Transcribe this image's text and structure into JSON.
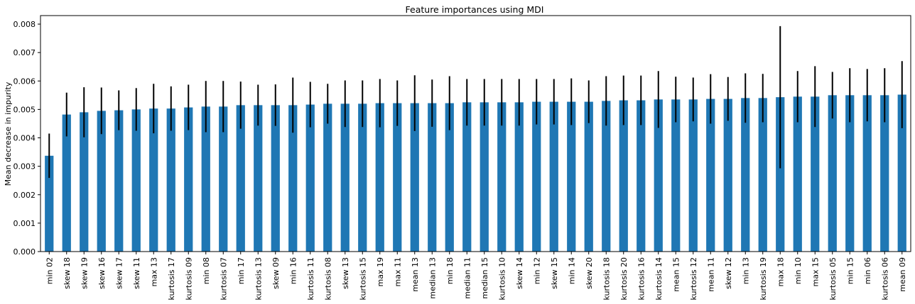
{
  "chart_data": {
    "type": "bar",
    "title": "Feature importances using MDI",
    "xlabel": "",
    "ylabel": "Mean decrease in impurity",
    "ylim": [
      0,
      0.0083
    ],
    "yticks": [
      "0.000",
      "0.001",
      "0.002",
      "0.003",
      "0.004",
      "0.005",
      "0.006",
      "0.007",
      "0.008"
    ],
    "ytick_values": [
      0,
      0.001,
      0.002,
      0.003,
      0.004,
      0.005,
      0.006,
      0.007,
      0.008
    ],
    "grid": false,
    "bar_color": "#1f77b4",
    "error_color": "#000000",
    "categories": [
      "min 02",
      "skew 18",
      "skew 19",
      "skew 16",
      "skew 17",
      "skew 11",
      "max 13",
      "kurtosis 17",
      "kurtosis 09",
      "min 08",
      "kurtosis 07",
      "min 17",
      "kurtosis 13",
      "skew 09",
      "min 16",
      "kurtosis 11",
      "kurtosis 08",
      "skew 13",
      "kurtosis 15",
      "max 19",
      "max 11",
      "mean 13",
      "median 13",
      "min 18",
      "median 11",
      "median 15",
      "kurtosis 10",
      "skew 14",
      "min 12",
      "skew 15",
      "min 14",
      "skew 20",
      "kurtosis 18",
      "kurtosis 20",
      "kurtosis 16",
      "kurtosis 14",
      "mean 15",
      "kurtosis 12",
      "mean 11",
      "skew 12",
      "min 13",
      "kurtosis 19",
      "max 18",
      "min 10",
      "max 15",
      "kurtosis 05",
      "min 15",
      "min 06",
      "kurtosis 06",
      "mean 09"
    ],
    "values": [
      0.00337,
      0.00482,
      0.0049,
      0.00495,
      0.00497,
      0.005,
      0.00503,
      0.00503,
      0.00507,
      0.0051,
      0.0051,
      0.00515,
      0.00515,
      0.00515,
      0.00515,
      0.00517,
      0.0052,
      0.0052,
      0.0052,
      0.00522,
      0.00522,
      0.00522,
      0.00522,
      0.00522,
      0.00525,
      0.00525,
      0.00525,
      0.00525,
      0.00527,
      0.00527,
      0.00527,
      0.00527,
      0.0053,
      0.00532,
      0.00532,
      0.00535,
      0.00535,
      0.00535,
      0.00537,
      0.00537,
      0.0054,
      0.0054,
      0.00543,
      0.00545,
      0.00545,
      0.0055,
      0.0055,
      0.0055,
      0.0055,
      0.00552
    ],
    "errors": [
      0.00078,
      0.00077,
      0.00088,
      0.00082,
      0.0007,
      0.00075,
      0.00087,
      0.00078,
      0.0008,
      0.0009,
      0.0009,
      0.00083,
      0.00072,
      0.00073,
      0.00097,
      0.0008,
      0.0007,
      0.00082,
      0.00082,
      0.00085,
      0.0008,
      0.00098,
      0.00083,
      0.00095,
      0.00082,
      0.00082,
      0.00082,
      0.00082,
      0.0008,
      0.0008,
      0.00082,
      0.00075,
      0.00087,
      0.00087,
      0.00087,
      0.001,
      0.0008,
      0.00077,
      0.00087,
      0.00077,
      0.00087,
      0.00085,
      0.0025,
      0.0009,
      0.00107,
      0.00082,
      0.00095,
      0.00092,
      0.00095,
      0.00118
    ]
  }
}
